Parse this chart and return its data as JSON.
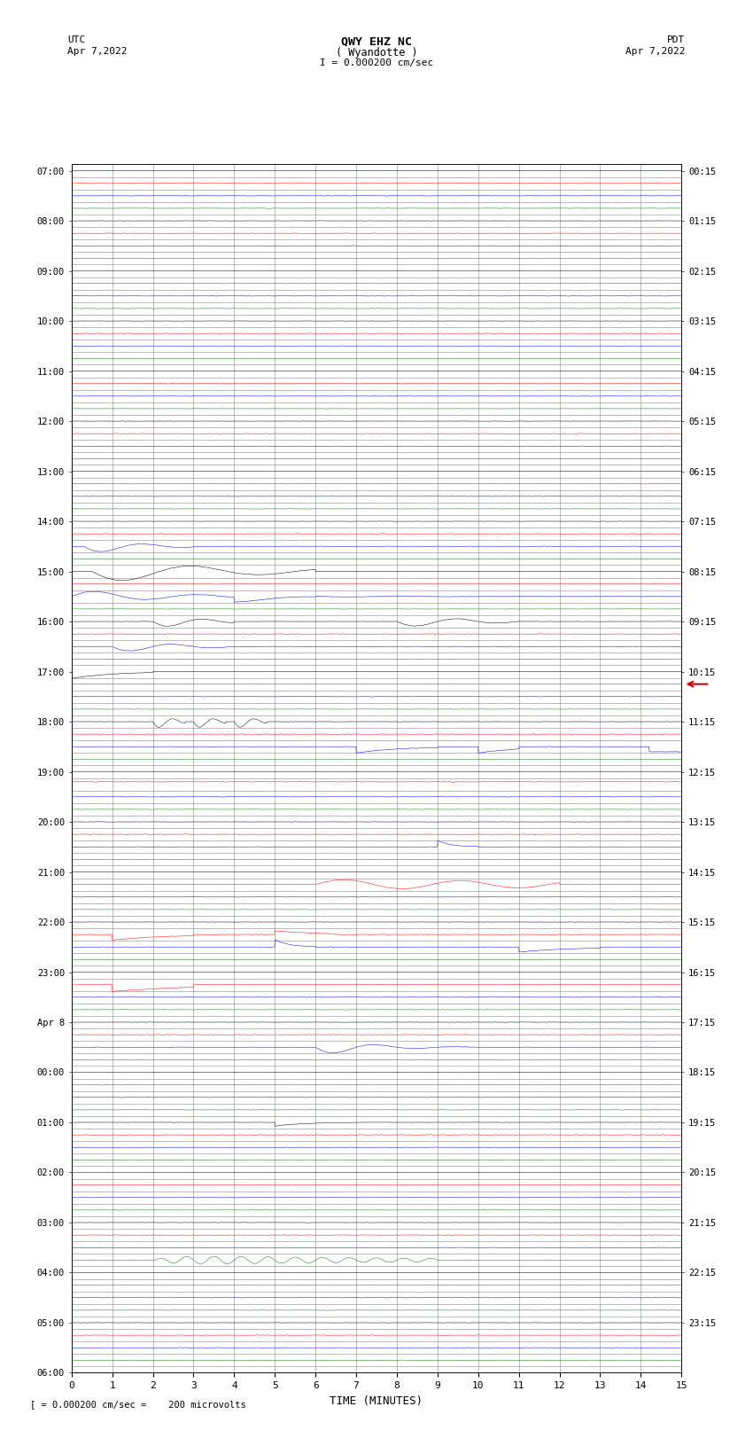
{
  "title_line1": "QWY EHZ NC",
  "title_line2": "( Wyandotte )",
  "title_scale": "I = 0.000200 cm/sec",
  "left_timezone": "UTC",
  "left_date": "Apr 7,2022",
  "right_timezone": "PDT",
  "right_date": "Apr 7,2022",
  "xlabel": "TIME (MINUTES)",
  "bottom_label": "= 0.000200 cm/sec =    200 microvolts",
  "background_color": "#ffffff",
  "grid_color": "#888888",
  "trace_color_black": "#000000",
  "trace_color_red": "#ff0000",
  "trace_color_blue": "#0000ff",
  "trace_color_green": "#008000",
  "arrow_color": "#cc0000",
  "figwidth": 8.5,
  "figheight": 16.13,
  "noise_amplitude": 0.012,
  "noise_seed": 42,
  "utc_row_labels": [
    "07:00",
    "",
    "",
    "",
    "08:00",
    "",
    "",
    "",
    "09:00",
    "",
    "",
    "",
    "10:00",
    "",
    "",
    "",
    "11:00",
    "",
    "",
    "",
    "12:00",
    "",
    "",
    "",
    "13:00",
    "",
    "",
    "",
    "14:00",
    "",
    "",
    "",
    "15:00",
    "",
    "",
    "",
    "16:00",
    "",
    "",
    "",
    "17:00",
    "",
    "",
    "",
    "18:00",
    "",
    "",
    "",
    "19:00",
    "",
    "",
    "",
    "20:00",
    "",
    "",
    "",
    "21:00",
    "",
    "",
    "",
    "22:00",
    "",
    "",
    "",
    "23:00",
    "",
    "",
    "",
    "Apr 8",
    "00:00",
    "",
    "",
    "",
    "01:00",
    "",
    "",
    "",
    "02:00",
    "",
    "",
    "",
    "03:00",
    "",
    "",
    "",
    "04:00",
    "",
    "",
    "",
    "05:00",
    "",
    "",
    "",
    "06:00",
    "",
    ""
  ],
  "pdt_row_labels": [
    "00:15",
    "",
    "",
    "",
    "01:15",
    "",
    "",
    "",
    "02:15",
    "",
    "",
    "",
    "03:15",
    "",
    "",
    "",
    "04:15",
    "",
    "",
    "",
    "05:15",
    "",
    "",
    "",
    "06:15",
    "",
    "",
    "",
    "07:15",
    "",
    "",
    "",
    "08:15",
    "",
    "",
    "",
    "09:15",
    "",
    "",
    "",
    "10:15",
    "",
    "",
    "",
    "11:15",
    "",
    "",
    "",
    "12:15",
    "",
    "",
    "",
    "13:15",
    "",
    "",
    "",
    "14:15",
    "",
    "",
    "",
    "15:15",
    "",
    "",
    "",
    "16:15",
    "",
    "",
    "",
    "17:15",
    "",
    "",
    "",
    "18:15",
    "",
    "",
    "",
    "19:15",
    "",
    "",
    "",
    "20:15",
    "",
    "",
    "",
    "21:15",
    "",
    "",
    "",
    "22:15",
    "",
    "",
    "",
    "23:15",
    "",
    ""
  ]
}
